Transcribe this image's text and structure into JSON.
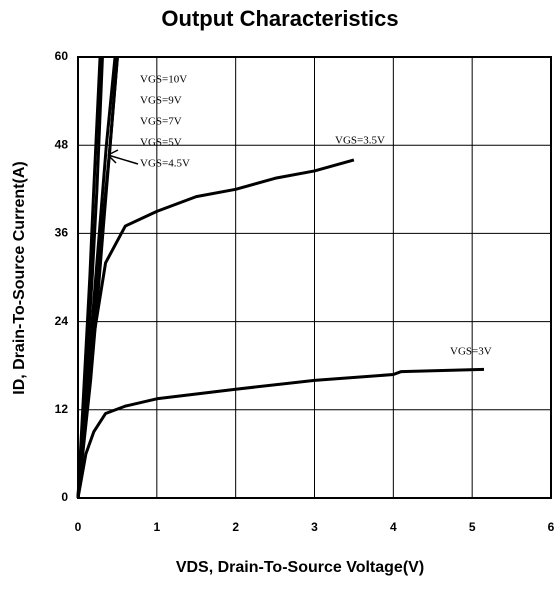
{
  "chart_data": {
    "type": "line",
    "title": "Output Characteristics",
    "x_label": "VDS, Drain-To-Source Voltage(V)",
    "y_label": "ID, Drain-To-Source Current(A)",
    "xlim": [
      0,
      6
    ],
    "xticks": [
      0,
      1,
      2,
      3,
      4,
      5,
      6
    ],
    "ylim": [
      0,
      60
    ],
    "yticks": [
      0,
      12,
      24,
      36,
      48,
      60
    ],
    "grid": true,
    "series": [
      {
        "name": "VGS=10V",
        "color": "#000000",
        "x": [
          0,
          0.05,
          0.1,
          0.15,
          0.2,
          0.28
        ],
        "values": [
          0,
          10,
          20,
          30,
          42,
          60
        ]
      },
      {
        "name": "VGS=9V",
        "color": "#000000",
        "x": [
          0,
          0.06,
          0.12,
          0.18,
          0.24,
          0.31
        ],
        "values": [
          0,
          10,
          20,
          30,
          42,
          60
        ]
      },
      {
        "name": "VGS=7V",
        "color": "#000000",
        "x": [
          0,
          0.1,
          0.18,
          0.27,
          0.36,
          0.47
        ],
        "values": [
          0,
          12,
          24,
          36,
          48,
          60
        ]
      },
      {
        "name": "VGS=5V",
        "color": "#000000",
        "x": [
          0,
          0.11,
          0.2,
          0.3,
          0.4,
          0.5
        ],
        "values": [
          0,
          12,
          24,
          36,
          47,
          60
        ]
      },
      {
        "name": "VGS=4.5V",
        "color": "#000000",
        "x": [
          0,
          0.08,
          0.16,
          0.24,
          0.33,
          0.5
        ],
        "values": [
          0,
          8,
          16,
          26,
          38,
          60
        ]
      },
      {
        "name": "VGS=3.5V",
        "color": "#000000",
        "x": [
          0,
          0.1,
          0.2,
          0.35,
          0.6,
          1,
          1.5,
          2,
          2.5,
          3,
          3.5
        ],
        "values": [
          0,
          12,
          22,
          32,
          37,
          39,
          41,
          42,
          43.5,
          44.5,
          46
        ]
      },
      {
        "name": "VGS=3V",
        "color": "#000000",
        "x": [
          0,
          0.1,
          0.2,
          0.35,
          0.6,
          1,
          2,
          3,
          4,
          4.1,
          5.15
        ],
        "values": [
          0,
          6,
          9,
          11.5,
          12.5,
          13.5,
          14.8,
          16,
          16.8,
          17.2,
          17.5
        ]
      }
    ]
  }
}
